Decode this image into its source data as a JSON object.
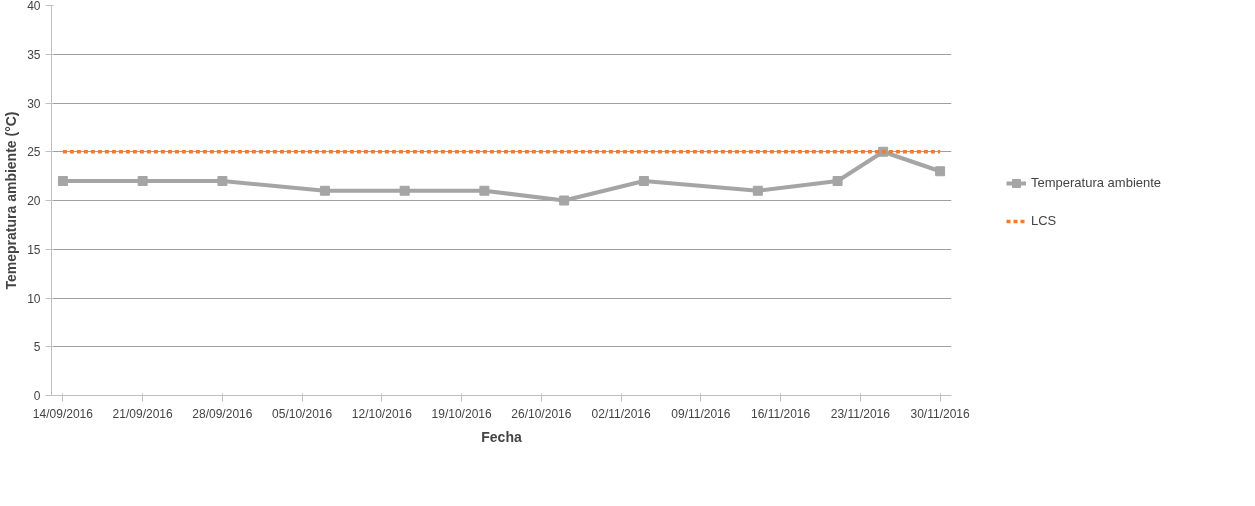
{
  "chart_data": {
    "type": "line",
    "xlabel": "Fecha",
    "ylabel": "Temepratura ambiente (°C)",
    "x": [
      "2016-09-14",
      "2016-09-21",
      "2016-09-28",
      "2016-10-07",
      "2016-10-14",
      "2016-10-21",
      "2016-10-28",
      "2016-11-04",
      "2016-11-14",
      "2016-11-21",
      "2016-11-25",
      "2016-11-30"
    ],
    "series": [
      {
        "name": "Temperatura ambiente",
        "color": "#a5a5a5",
        "marker": "square",
        "line_style": "solid",
        "values": [
          22,
          22,
          22,
          21,
          21,
          21,
          20,
          22,
          21,
          22,
          25,
          23
        ]
      },
      {
        "name": "LCS",
        "color": "#ed7d31",
        "marker": "none",
        "line_style": "dashed",
        "x": [
          "2016-09-14",
          "2016-11-30"
        ],
        "values": [
          25,
          25
        ]
      }
    ],
    "xlim": [
      "2016-09-13",
      "2016-12-01"
    ],
    "xticks": [
      {
        "value": "2016-09-14",
        "label": "14/09/2016"
      },
      {
        "value": "2016-09-21",
        "label": "21/09/2016"
      },
      {
        "value": "2016-09-28",
        "label": "28/09/2016"
      },
      {
        "value": "2016-10-05",
        "label": "05/10/2016"
      },
      {
        "value": "2016-10-12",
        "label": "12/10/2016"
      },
      {
        "value": "2016-10-19",
        "label": "19/10/2016"
      },
      {
        "value": "2016-10-26",
        "label": "26/10/2016"
      },
      {
        "value": "2016-11-02",
        "label": "02/11/2016"
      },
      {
        "value": "2016-11-09",
        "label": "09/11/2016"
      },
      {
        "value": "2016-11-16",
        "label": "16/11/2016"
      },
      {
        "value": "2016-11-23",
        "label": "23/11/2016"
      },
      {
        "value": "2016-11-30",
        "label": "30/11/2016"
      }
    ],
    "ylim": [
      0,
      40
    ],
    "yticks": [
      0,
      5,
      10,
      15,
      20,
      25,
      30,
      35,
      40
    ],
    "grid": "y",
    "legend": "right"
  }
}
